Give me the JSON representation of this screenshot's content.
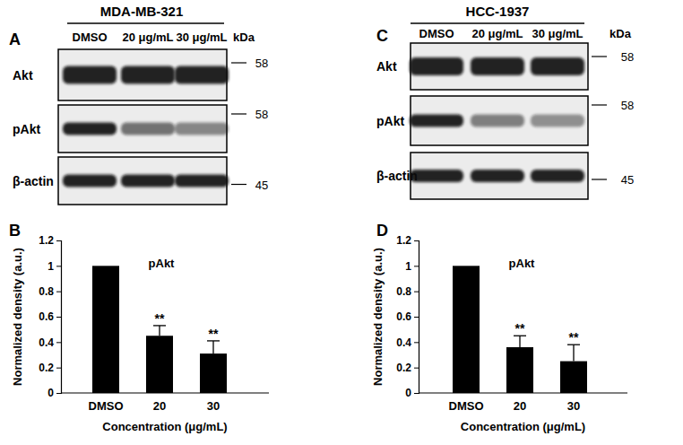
{
  "blots": [
    {
      "panel": "A",
      "cell_line": "MDA-MB-321",
      "lanes": [
        "DMSO",
        "20 μg/mL",
        "30 μg/mL"
      ],
      "unit_label": "kDa",
      "rows": [
        {
          "protein": "Akt",
          "kda": 58
        },
        {
          "protein": "pAkt",
          "kda": 58
        },
        {
          "protein": "β-actin",
          "kda": 45
        }
      ]
    },
    {
      "panel": "C",
      "cell_line": "HCC-1937",
      "lanes": [
        "DMSO",
        "20 μg/mL",
        "30 μg/mL"
      ],
      "unit_label": "kDa",
      "rows": [
        {
          "protein": "Akt",
          "kda": 58
        },
        {
          "protein": "pAkt",
          "kda": 58
        },
        {
          "protein": "β-actin",
          "kda": 45
        }
      ]
    }
  ],
  "chart_data": [
    {
      "type": "bar",
      "panel": "B",
      "title": "pAkt",
      "x_label": "Concentration (μg/mL)",
      "y_label": "Normalized density (a.u.)",
      "categories": [
        "DMSO",
        "20",
        "30"
      ],
      "values": [
        1,
        0.45,
        0.31
      ],
      "errors": [
        null,
        0.08,
        0.1
      ],
      "annotations": [
        {
          "category": "20",
          "text": "**"
        },
        {
          "category": "30",
          "text": "**"
        }
      ],
      "color": "#000000",
      "ylim": [
        0,
        1.2
      ],
      "yticks": [
        0,
        0.2,
        0.4,
        0.6,
        0.8,
        1,
        1.2
      ]
    },
    {
      "type": "bar",
      "panel": "D",
      "title": "pAkt",
      "x_label": "Concentration (μg/mL)",
      "y_label": "Normalized density (a.u.)",
      "categories": [
        "DMSO",
        "20",
        "30"
      ],
      "values": [
        1,
        0.36,
        0.25
      ],
      "errors": [
        null,
        0.09,
        0.13
      ],
      "annotations": [
        {
          "category": "20",
          "text": "**"
        },
        {
          "category": "30",
          "text": "**"
        }
      ],
      "color": "#000000",
      "ylim": [
        0,
        1.2
      ],
      "yticks": [
        0,
        0.2,
        0.4,
        0.6,
        0.8,
        1,
        1.2
      ]
    }
  ]
}
